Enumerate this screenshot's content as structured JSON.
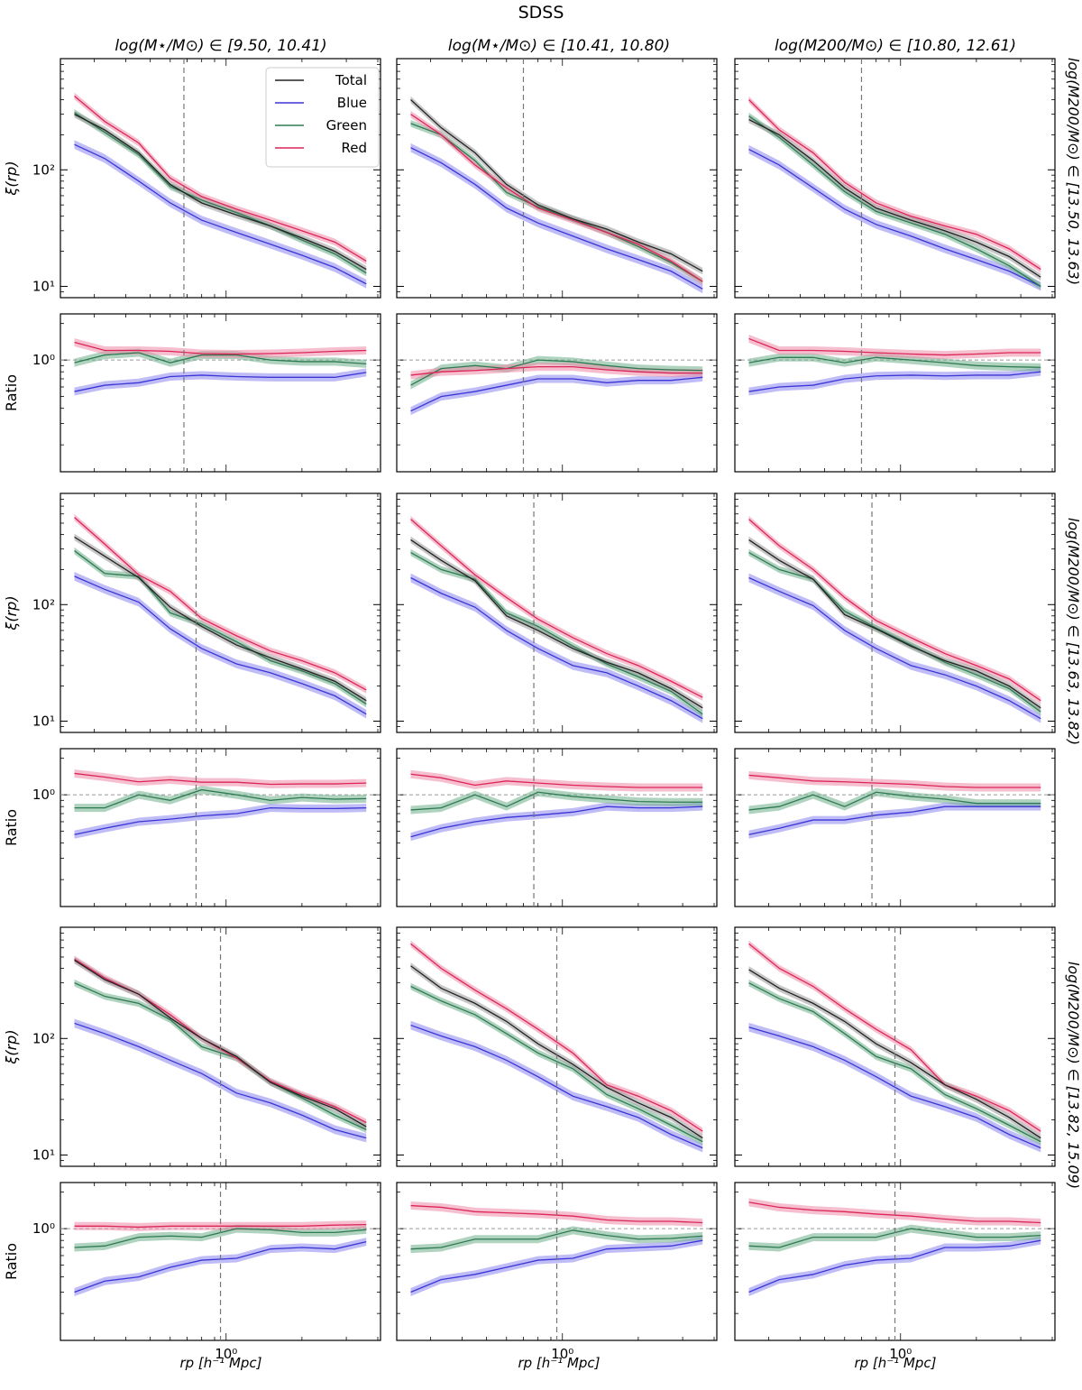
{
  "figure": {
    "title": "SDSS",
    "col_titles": [
      "log(M⋆/M⊙) ∈ [9.50, 10.41)",
      "log(M⋆/M⊙) ∈ [10.41, 10.80)",
      "log(M200/M⊙) ∈ [10.80, 12.61)"
    ],
    "row_titles": [
      "log(M200/M⊙) ∈ [13.50, 13.63)",
      "log(M200/M⊙) ∈ [13.63, 13.82)",
      "log(M200/M⊙) ∈ [13.82, 15.09)"
    ],
    "ylabel_main": "ξ(rp)",
    "ylabel_ratio": "Ratio",
    "xlabel": "rp [h⁻¹ Mpc]",
    "xtick_label": "10⁰",
    "ytick_main": [
      "10¹",
      "10²"
    ],
    "ytick_ratio": "10⁰"
  },
  "chart_data": {
    "type": "line",
    "x_scale": "log",
    "y_scale": "log",
    "main_ylim": [
      8,
      900
    ],
    "ratio_ylim": [
      0.12,
      2.4
    ],
    "colors": {
      "Total": "#222222",
      "Blue": "#3a35d6",
      "Green": "#2e7a52",
      "Red": "#dc2557"
    },
    "band_colors": {
      "Total": "#999999",
      "Blue": "#8a85ee",
      "Green": "#6fae8c",
      "Red": "#ef8aa8"
    },
    "legend": [
      "Total",
      "Blue",
      "Green",
      "Red"
    ],
    "legend_position": "top-right of top-left panel",
    "panels": [
      {
        "row": 0,
        "col": 0,
        "vline": 0.68,
        "x": [
          0.25,
          0.33,
          0.45,
          0.6,
          0.8,
          1.1,
          1.5,
          2.0,
          2.7,
          3.6
        ],
        "main": {
          "Total": [
            300,
            220,
            140,
            75,
            52,
            41,
            33,
            26,
            20,
            14
          ],
          "Blue": [
            165,
            125,
            80,
            52,
            37,
            29,
            23,
            18.5,
            14.5,
            10.5
          ],
          "Green": [
            310,
            210,
            135,
            72,
            55,
            43,
            33,
            25,
            19,
            13
          ],
          "Red": [
            430,
            260,
            170,
            85,
            59,
            46,
            37,
            30,
            24,
            16.5
          ]
        },
        "ratio": {
          "Blue": [
            0.55,
            0.62,
            0.65,
            0.73,
            0.75,
            0.73,
            0.72,
            0.72,
            0.72,
            0.79
          ],
          "Green": [
            0.95,
            1.1,
            1.15,
            0.95,
            1.1,
            1.1,
            1.0,
            0.97,
            0.97,
            0.93
          ],
          "Red": [
            1.4,
            1.2,
            1.2,
            1.18,
            1.13,
            1.12,
            1.13,
            1.15,
            1.18,
            1.2
          ]
        }
      },
      {
        "row": 0,
        "col": 1,
        "vline": 0.7,
        "x": [
          0.25,
          0.33,
          0.45,
          0.6,
          0.8,
          1.1,
          1.5,
          2.0,
          2.7,
          3.6
        ],
        "main": {
          "Total": [
            400,
            230,
            140,
            75,
            50,
            38,
            31,
            24,
            19,
            13.5
          ],
          "Blue": [
            155,
            115,
            75,
            47,
            35,
            27,
            21,
            17,
            13.5,
            9.5
          ],
          "Green": [
            250,
            200,
            120,
            64,
            48,
            38,
            29,
            22,
            16,
            11
          ],
          "Red": [
            300,
            200,
            110,
            70,
            47,
            37,
            29,
            23,
            16.5,
            11
          ]
        },
        "ratio": {
          "Blue": [
            0.38,
            0.5,
            0.55,
            0.62,
            0.7,
            0.7,
            0.65,
            0.68,
            0.68,
            0.72
          ],
          "Green": [
            0.62,
            0.85,
            0.9,
            0.85,
            1.0,
            0.97,
            0.9,
            0.85,
            0.83,
            0.82
          ],
          "Red": [
            0.75,
            0.8,
            0.82,
            0.85,
            0.88,
            0.88,
            0.83,
            0.8,
            0.78,
            0.78
          ]
        }
      },
      {
        "row": 0,
        "col": 2,
        "vline": 0.7,
        "x": [
          0.25,
          0.33,
          0.45,
          0.6,
          0.8,
          1.1,
          1.5,
          2.0,
          2.7,
          3.6
        ],
        "main": {
          "Total": [
            270,
            200,
            120,
            70,
            47,
            37,
            30,
            24,
            18,
            12
          ],
          "Blue": [
            150,
            110,
            70,
            46,
            34,
            27,
            21,
            17,
            13.5,
            10
          ],
          "Green": [
            290,
            190,
            110,
            65,
            44,
            35,
            28,
            21,
            15,
            10
          ],
          "Red": [
            400,
            220,
            140,
            78,
            52,
            40,
            33,
            28,
            21,
            14
          ]
        },
        "ratio": {
          "Blue": [
            0.55,
            0.6,
            0.62,
            0.7,
            0.74,
            0.75,
            0.74,
            0.75,
            0.75,
            0.8
          ],
          "Green": [
            0.95,
            1.05,
            1.05,
            0.95,
            1.05,
            1.0,
            0.95,
            0.9,
            0.88,
            0.87
          ],
          "Red": [
            1.5,
            1.2,
            1.2,
            1.18,
            1.15,
            1.12,
            1.1,
            1.12,
            1.15,
            1.15
          ]
        }
      },
      {
        "row": 1,
        "col": 0,
        "vline": 0.76,
        "x": [
          0.25,
          0.33,
          0.45,
          0.6,
          0.8,
          1.1,
          1.5,
          2.0,
          2.7,
          3.6
        ],
        "main": {
          "Total": [
            380,
            260,
            170,
            95,
            65,
            45,
            35,
            28,
            22,
            15
          ],
          "Blue": [
            175,
            135,
            105,
            62,
            42,
            31,
            26,
            21,
            16.5,
            11.5
          ],
          "Green": [
            290,
            185,
            175,
            85,
            68,
            48,
            33,
            27,
            21,
            14
          ],
          "Red": [
            560,
            330,
            180,
            130,
            76,
            54,
            40,
            33,
            26,
            18.5
          ]
        },
        "ratio": {
          "Blue": [
            0.47,
            0.53,
            0.6,
            0.63,
            0.67,
            0.7,
            0.78,
            0.77,
            0.77,
            0.78
          ],
          "Green": [
            0.78,
            0.78,
            1.0,
            0.9,
            1.1,
            1.0,
            0.9,
            0.95,
            0.92,
            0.93
          ],
          "Red": [
            1.5,
            1.4,
            1.28,
            1.33,
            1.27,
            1.27,
            1.22,
            1.23,
            1.23,
            1.25
          ]
        }
      },
      {
        "row": 1,
        "col": 1,
        "vline": 0.77,
        "x": [
          0.25,
          0.33,
          0.45,
          0.6,
          0.8,
          1.1,
          1.5,
          2.0,
          2.7,
          3.6
        ],
        "main": {
          "Total": [
            360,
            240,
            160,
            80,
            60,
            42,
            32,
            26,
            19,
            13
          ],
          "Blue": [
            170,
            125,
            95,
            60,
            42,
            30,
            26,
            20,
            15,
            10.5
          ],
          "Green": [
            280,
            200,
            165,
            85,
            65,
            44,
            31,
            24,
            18,
            11.5
          ],
          "Red": [
            540,
            320,
            180,
            115,
            75,
            52,
            38,
            30,
            22,
            16
          ]
        },
        "ratio": {
          "Blue": [
            0.45,
            0.53,
            0.6,
            0.65,
            0.68,
            0.72,
            0.8,
            0.78,
            0.78,
            0.8
          ],
          "Green": [
            0.75,
            0.78,
            1.0,
            0.8,
            1.05,
            0.97,
            0.92,
            0.88,
            0.87,
            0.87
          ],
          "Red": [
            1.48,
            1.38,
            1.2,
            1.3,
            1.25,
            1.2,
            1.17,
            1.15,
            1.15,
            1.15
          ]
        }
      },
      {
        "row": 1,
        "col": 2,
        "vline": 0.77,
        "x": [
          0.25,
          0.33,
          0.45,
          0.6,
          0.8,
          1.1,
          1.5,
          2.0,
          2.7,
          3.6
        ],
        "main": {
          "Total": [
            360,
            240,
            165,
            82,
            62,
            44,
            33,
            27,
            20,
            13
          ],
          "Blue": [
            170,
            130,
            98,
            60,
            42,
            30,
            25,
            20,
            15,
            10.5
          ],
          "Green": [
            280,
            200,
            165,
            88,
            63,
            45,
            32,
            25,
            19,
            12
          ],
          "Red": [
            540,
            320,
            200,
            115,
            73,
            52,
            38,
            30,
            23,
            15
          ]
        },
        "ratio": {
          "Blue": [
            0.47,
            0.53,
            0.62,
            0.62,
            0.68,
            0.72,
            0.8,
            0.8,
            0.8,
            0.8
          ],
          "Green": [
            0.75,
            0.8,
            1.0,
            0.8,
            1.05,
            0.97,
            0.92,
            0.85,
            0.85,
            0.85
          ],
          "Red": [
            1.45,
            1.38,
            1.3,
            1.28,
            1.25,
            1.22,
            1.17,
            1.15,
            1.15,
            1.15
          ]
        }
      },
      {
        "row": 2,
        "col": 0,
        "vline": 0.95,
        "x": [
          0.25,
          0.33,
          0.45,
          0.6,
          0.8,
          1.1,
          1.5,
          2.0,
          2.7,
          3.6
        ],
        "main": {
          "Total": [
            470,
            320,
            240,
            150,
            100,
            70,
            42,
            32,
            25,
            17.5
          ],
          "Blue": [
            135,
            110,
            85,
            65,
            50,
            34,
            28,
            22,
            16.5,
            14
          ],
          "Green": [
            300,
            230,
            200,
            145,
            85,
            68,
            42,
            31,
            22,
            16.5
          ],
          "Red": [
            480,
            330,
            240,
            160,
            100,
            68,
            43,
            33,
            26,
            19
          ]
        },
        "ratio": {
          "Blue": [
            0.3,
            0.37,
            0.4,
            0.48,
            0.55,
            0.57,
            0.68,
            0.7,
            0.68,
            0.78
          ],
          "Green": [
            0.7,
            0.72,
            0.85,
            0.87,
            0.85,
            1.0,
            0.98,
            0.93,
            0.93,
            0.98
          ],
          "Red": [
            1.05,
            1.05,
            1.03,
            1.05,
            1.05,
            1.05,
            1.05,
            1.05,
            1.07,
            1.08
          ]
        }
      },
      {
        "row": 2,
        "col": 1,
        "vline": 0.95,
        "x": [
          0.25,
          0.33,
          0.45,
          0.6,
          0.8,
          1.1,
          1.5,
          2.0,
          2.7,
          3.6
        ],
        "main": {
          "Total": [
            420,
            270,
            200,
            140,
            90,
            60,
            38,
            28,
            21,
            14
          ],
          "Blue": [
            130,
            105,
            85,
            65,
            47,
            32,
            26,
            21,
            15,
            11.5
          ],
          "Green": [
            280,
            210,
            160,
            110,
            75,
            55,
            33,
            25,
            18,
            13
          ],
          "Red": [
            650,
            400,
            260,
            180,
            120,
            75,
            40,
            32,
            24,
            16
          ]
        },
        "ratio": {
          "Blue": [
            0.3,
            0.38,
            0.42,
            0.48,
            0.55,
            0.57,
            0.68,
            0.7,
            0.72,
            0.8
          ],
          "Green": [
            0.68,
            0.7,
            0.82,
            0.82,
            0.82,
            0.97,
            0.88,
            0.82,
            0.83,
            0.87
          ],
          "Red": [
            1.55,
            1.5,
            1.38,
            1.35,
            1.32,
            1.27,
            1.18,
            1.15,
            1.15,
            1.12
          ]
        }
      },
      {
        "row": 2,
        "col": 2,
        "vline": 0.95,
        "x": [
          0.25,
          0.33,
          0.45,
          0.6,
          0.8,
          1.1,
          1.5,
          2.0,
          2.7,
          3.6
        ],
        "main": {
          "Total": [
            390,
            270,
            200,
            140,
            90,
            62,
            40,
            30,
            21,
            14
          ],
          "Blue": [
            125,
            105,
            85,
            65,
            47,
            32,
            26,
            21,
            15,
            11.5
          ],
          "Green": [
            300,
            220,
            170,
            110,
            70,
            55,
            33,
            25,
            18,
            13
          ],
          "Red": [
            650,
            400,
            280,
            180,
            120,
            80,
            40,
            32,
            24,
            16
          ]
        },
        "ratio": {
          "Blue": [
            0.3,
            0.38,
            0.42,
            0.5,
            0.55,
            0.57,
            0.7,
            0.7,
            0.72,
            0.8
          ],
          "Green": [
            0.72,
            0.7,
            0.85,
            0.85,
            0.85,
            1.0,
            0.92,
            0.85,
            0.85,
            0.88
          ],
          "Red": [
            1.65,
            1.5,
            1.42,
            1.38,
            1.32,
            1.27,
            1.2,
            1.15,
            1.15,
            1.12
          ]
        }
      }
    ]
  }
}
